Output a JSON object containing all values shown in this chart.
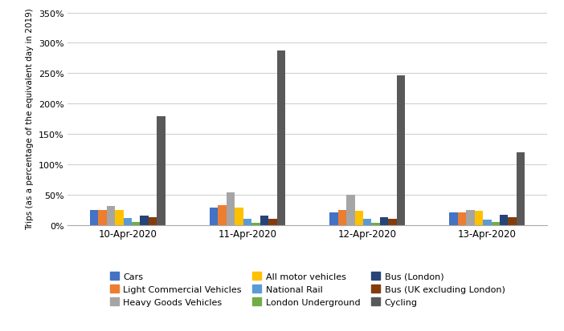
{
  "dates": [
    "10-Apr-2020",
    "11-Apr-2020",
    "12-Apr-2020",
    "13-Apr-2020"
  ],
  "series": {
    "Cars": [
      25,
      28,
      20,
      21
    ],
    "Light Commercial Vehicles": [
      25,
      33,
      25,
      20
    ],
    "Heavy Goods Vehicles": [
      31,
      54,
      49,
      25
    ],
    "All motor vehicles": [
      25,
      29,
      23,
      23
    ],
    "National Rail": [
      11,
      10,
      10,
      9
    ],
    "London Underground": [
      5,
      3,
      3,
      5
    ],
    "Bus (London)": [
      15,
      15,
      12,
      17
    ],
    "Bus (UK excluding London)": [
      12,
      10,
      10,
      12
    ],
    "Cycling": [
      179,
      287,
      246,
      120
    ]
  },
  "colors": {
    "Cars": "#4472C4",
    "Light Commercial Vehicles": "#ED7D31",
    "Heavy Goods Vehicles": "#A5A5A5",
    "All motor vehicles": "#FFC000",
    "National Rail": "#5B9BD5",
    "London Underground": "#70AD47",
    "Bus (London)": "#264478",
    "Bus (UK excluding London)": "#843C0C",
    "Cycling": "#595959"
  },
  "ylabel": "Trips (as a percentage of the equivalent day in 2019)",
  "ylim_max": 350,
  "yticks": [
    0,
    50,
    100,
    150,
    200,
    250,
    300,
    350
  ],
  "ytick_labels": [
    "0%",
    "50%",
    "100%",
    "150%",
    "200%",
    "250%",
    "300%",
    "350%"
  ],
  "legend_order": [
    "Cars",
    "Light Commercial Vehicles",
    "Heavy Goods Vehicles",
    "All motor vehicles",
    "National Rail",
    "London Underground",
    "Bus (London)",
    "Bus (UK excluding London)",
    "Cycling"
  ],
  "bg_color": "#FFFFFF",
  "grid_color": "#D0D0D0"
}
